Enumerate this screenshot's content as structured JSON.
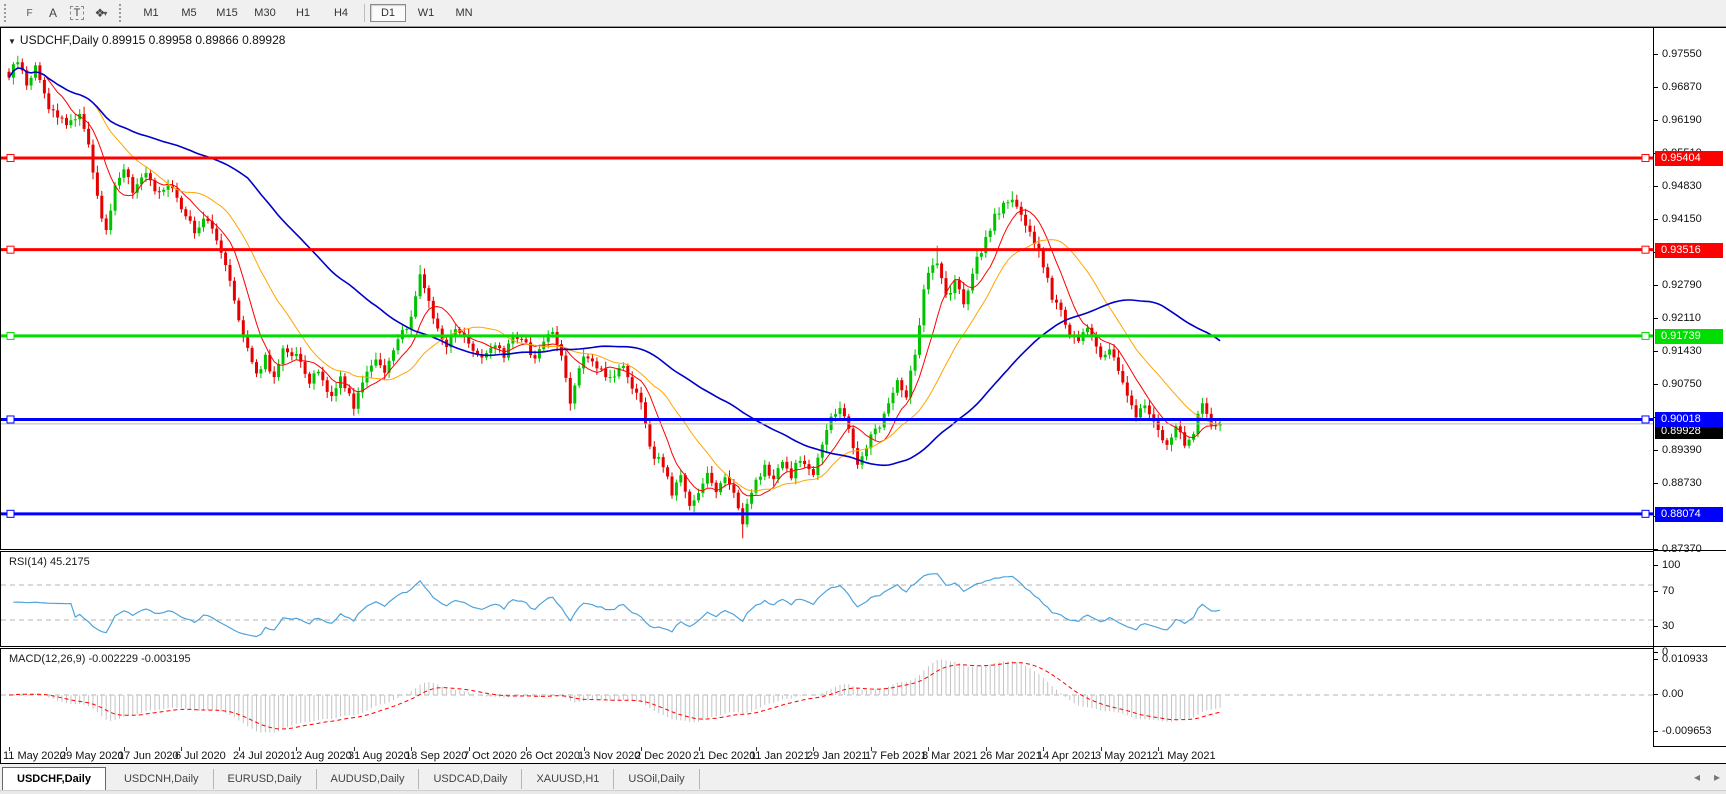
{
  "toolbar": {
    "tools": [
      {
        "name": "fibonacci-retracement",
        "glyph": "F"
      },
      {
        "name": "text",
        "glyph": "A"
      },
      {
        "name": "text-label",
        "glyph": "T"
      },
      {
        "name": "arrows-style",
        "glyph": "❖"
      }
    ],
    "arrows_caret": "▾",
    "timeframes": [
      "M1",
      "M5",
      "M15",
      "M30",
      "H1",
      "H4",
      "D1",
      "W1",
      "MN"
    ],
    "active_timeframe": "D1"
  },
  "chart": {
    "title_caret": "▼",
    "title": "USDCHF,Daily  0.89915 0.89958 0.89866 0.89928",
    "price_axis_ticks": [
      "0.97550",
      "0.96870",
      "0.96190",
      "0.95510",
      "0.94830",
      "0.94150",
      "0.93470",
      "0.92790",
      "0.92110",
      "0.91430",
      "0.90750",
      "0.90070",
      "0.89390",
      "0.88730",
      "0.88050",
      "0.87370"
    ],
    "date_axis": [
      "11 May 2020",
      "29 May 2020",
      "17 Jun 2020",
      "6 Jul 2020",
      "24 Jul 2020",
      "12 Aug 2020",
      "31 Aug 2020",
      "18 Sep 2020",
      "7 Oct 2020",
      "26 Oct 2020",
      "13 Nov 2020",
      "2 Dec 2020",
      "21 Dec 2020",
      "11 Jan 2021",
      "29 Jan 2021",
      "17 Feb 2021",
      "8 Mar 2021",
      "26 Mar 2021",
      "14 Apr 2021",
      "3 May 2021",
      "21 May 2021"
    ],
    "current_price_label": "0.89928"
  },
  "rsi_panel": {
    "label": "RSI(14) 45.2175",
    "ticks": [
      "100",
      "70",
      "30",
      "0"
    ]
  },
  "macd_panel": {
    "label": "MACD(12,26,9) -0.002229 -0.003195",
    "ticks": [
      "0.010933",
      "0.00",
      "-0.009653"
    ]
  },
  "tabs": {
    "items": [
      {
        "label": "USDCHF,Daily",
        "active": true
      },
      {
        "label": "USDCNH,Daily",
        "active": false
      },
      {
        "label": "EURUSD,Daily",
        "active": false
      },
      {
        "label": "AUDUSD,Daily",
        "active": false
      },
      {
        "label": "USDCAD,Daily",
        "active": false
      },
      {
        "label": "XAUUSD,H1",
        "active": false
      },
      {
        "label": "USOil,Daily",
        "active": false
      }
    ],
    "scroll_left": "◂",
    "scroll_right": "▸"
  },
  "colors": {
    "up": "#00C300",
    "down": "#E60000",
    "level_red": "#FF0000",
    "level_green": "#00DD00",
    "level_blue": "#0000FF",
    "ma_fast": "#FF0000",
    "ma_mid": "#FFA500",
    "ma_slow": "#0000C8",
    "rsi": "#4FA3DC",
    "macd_hist": "#C4C4C4",
    "macd_signal": "#FF0000",
    "current_line": "#B8B8B8",
    "current_label_bg": "#000000"
  },
  "chart_data": {
    "type": "candlestick",
    "symbol": "USDCHF",
    "timeframe": "Daily",
    "title": "USDCHF,Daily",
    "ohlc_current": {
      "open": 0.89915,
      "high": 0.89958,
      "low": 0.89866,
      "close": 0.89928
    },
    "bars": 275,
    "price_axis_ticks": [
      0.9755,
      0.9687,
      0.9619,
      0.9551,
      0.9483,
      0.9415,
      0.9347,
      0.9279,
      0.9211,
      0.9143,
      0.9075,
      0.9007,
      0.8939,
      0.8873,
      0.8805,
      0.8737
    ],
    "ylim": [
      0.8737,
      0.9777
    ],
    "levels": [
      {
        "price": 0.95404,
        "label": "0.95404",
        "color": "#FF0000"
      },
      {
        "price": 0.93516,
        "label": "0.93516",
        "color": "#FF0000"
      },
      {
        "price": 0.91739,
        "label": "0.91739",
        "color": "#00DD00"
      },
      {
        "price": 0.90018,
        "label": "0.90018",
        "color": "#0000FF"
      },
      {
        "price": 0.88074,
        "label": "0.88074",
        "color": "#0000FF"
      }
    ],
    "current_price": 0.89928,
    "moving_averages": [
      {
        "period": 8,
        "color": "#FF0000"
      },
      {
        "period": 20,
        "color": "#FFA500"
      },
      {
        "period": 55,
        "color": "#0000C8"
      }
    ],
    "rsi": {
      "period": 14,
      "current": 45.2175,
      "guide_levels": [
        70,
        30
      ],
      "scale": [
        0,
        100
      ]
    },
    "macd": {
      "fast": 12,
      "slow": 26,
      "signal": 9,
      "current_macd": -0.002229,
      "current_signal": -0.003195,
      "scale_ticks": [
        0.010933,
        0.0,
        -0.009653
      ]
    },
    "close_keypoints": [
      [
        0,
        0.971
      ],
      [
        2,
        0.9742
      ],
      [
        4,
        0.969
      ],
      [
        6,
        0.973
      ],
      [
        9,
        0.9645
      ],
      [
        13,
        0.9612
      ],
      [
        16,
        0.9632
      ],
      [
        18,
        0.9572
      ],
      [
        20,
        0.9455
      ],
      [
        22,
        0.939
      ],
      [
        24,
        0.948
      ],
      [
        26,
        0.9523
      ],
      [
        28,
        0.947
      ],
      [
        31,
        0.9508
      ],
      [
        34,
        0.9465
      ],
      [
        37,
        0.9482
      ],
      [
        39,
        0.944
      ],
      [
        42,
        0.9392
      ],
      [
        45,
        0.9418
      ],
      [
        48,
        0.9352
      ],
      [
        50,
        0.9295
      ],
      [
        52,
        0.921
      ],
      [
        54,
        0.9148
      ],
      [
        56,
        0.9092
      ],
      [
        58,
        0.9132
      ],
      [
        60,
        0.9082
      ],
      [
        62,
        0.9152
      ],
      [
        65,
        0.9132
      ],
      [
        68,
        0.9078
      ],
      [
        70,
        0.9102
      ],
      [
        73,
        0.9048
      ],
      [
        75,
        0.9092
      ],
      [
        78,
        0.9032
      ],
      [
        80,
        0.9082
      ],
      [
        83,
        0.9132
      ],
      [
        85,
        0.9098
      ],
      [
        88,
        0.9162
      ],
      [
        91,
        0.9212
      ],
      [
        93,
        0.9298
      ],
      [
        95,
        0.9252
      ],
      [
        97,
        0.9182
      ],
      [
        99,
        0.9152
      ],
      [
        101,
        0.9192
      ],
      [
        104,
        0.9162
      ],
      [
        107,
        0.9128
      ],
      [
        110,
        0.9152
      ],
      [
        112,
        0.9132
      ],
      [
        114,
        0.918
      ],
      [
        117,
        0.9155
      ],
      [
        119,
        0.9122
      ],
      [
        121,
        0.9168
      ],
      [
        123,
        0.918
      ],
      [
        125,
        0.9132
      ],
      [
        127,
        0.9042
      ],
      [
        129,
        0.9108
      ],
      [
        130,
        0.9125
      ],
      [
        133,
        0.9112
      ],
      [
        136,
        0.9088
      ],
      [
        139,
        0.9106
      ],
      [
        141,
        0.9062
      ],
      [
        143,
        0.9038
      ],
      [
        145,
        0.8938
      ],
      [
        148,
        0.8908
      ],
      [
        150,
        0.8852
      ],
      [
        152,
        0.8882
      ],
      [
        154,
        0.8822
      ],
      [
        156,
        0.8852
      ],
      [
        158,
        0.8892
      ],
      [
        160,
        0.8858
      ],
      [
        162,
        0.8882
      ],
      [
        164,
        0.8852
      ],
      [
        166,
        0.8792
      ],
      [
        168,
        0.8852
      ],
      [
        169,
        0.8872
      ],
      [
        171,
        0.8902
      ],
      [
        173,
        0.8882
      ],
      [
        175,
        0.8912
      ],
      [
        177,
        0.8888
      ],
      [
        179,
        0.8922
      ],
      [
        182,
        0.8888
      ],
      [
        184,
        0.8952
      ],
      [
        186,
        0.9002
      ],
      [
        188,
        0.9032
      ],
      [
        190,
        0.8978
      ],
      [
        192,
        0.8908
      ],
      [
        195,
        0.8968
      ],
      [
        197,
        0.8992
      ],
      [
        199,
        0.9038
      ],
      [
        201,
        0.9082
      ],
      [
        203,
        0.9052
      ],
      [
        205,
        0.9138
      ],
      [
        207,
        0.9262
      ],
      [
        208,
        0.9302
      ],
      [
        210,
        0.9322
      ],
      [
        212,
        0.9252
      ],
      [
        214,
        0.9282
      ],
      [
        216,
        0.9242
      ],
      [
        218,
        0.9308
      ],
      [
        221,
        0.9372
      ],
      [
        223,
        0.9422
      ],
      [
        225,
        0.9442
      ],
      [
        227,
        0.9458
      ],
      [
        229,
        0.9428
      ],
      [
        231,
        0.9382
      ],
      [
        234,
        0.9322
      ],
      [
        236,
        0.9252
      ],
      [
        238,
        0.9228
      ],
      [
        240,
        0.9182
      ],
      [
        242,
        0.9158
      ],
      [
        244,
        0.9192
      ],
      [
        247,
        0.9128
      ],
      [
        249,
        0.9152
      ],
      [
        251,
        0.9102
      ],
      [
        253,
        0.9052
      ],
      [
        255,
        0.9008
      ],
      [
        257,
        0.9032
      ],
      [
        259,
        0.8992
      ],
      [
        260,
        0.8978
      ],
      [
        262,
        0.8948
      ],
      [
        264,
        0.8988
      ],
      [
        266,
        0.8952
      ],
      [
        268,
        0.8978
      ],
      [
        270,
        0.9042
      ],
      [
        272,
        0.8992
      ],
      [
        274,
        0.89928
      ]
    ],
    "wick_overrides": {
      "2": {
        "high": 0.9751
      },
      "93": {
        "high": 0.932
      },
      "166": {
        "low": 0.8757
      },
      "210": {
        "high": 0.936
      },
      "227": {
        "high": 0.9472
      }
    }
  }
}
